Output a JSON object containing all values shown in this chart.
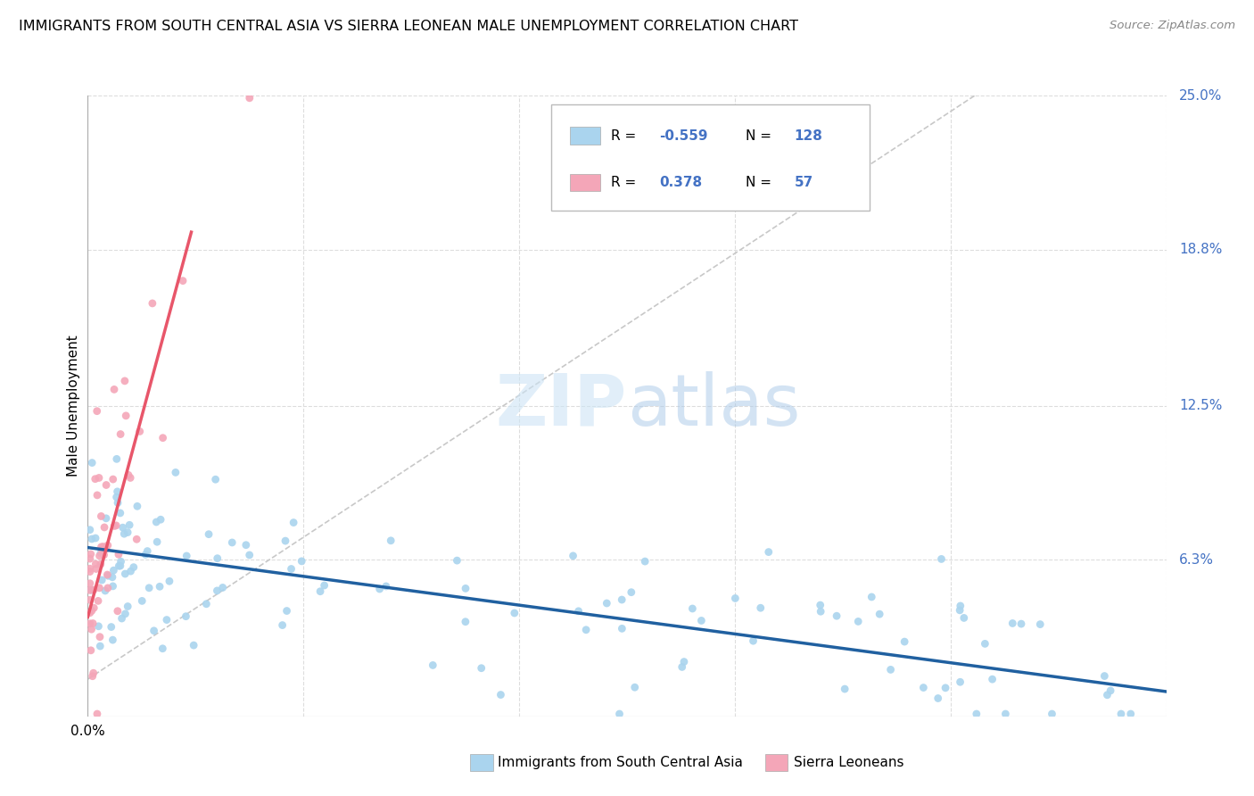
{
  "title": "IMMIGRANTS FROM SOUTH CENTRAL ASIA VS SIERRA LEONEAN MALE UNEMPLOYMENT CORRELATION CHART",
  "source": "Source: ZipAtlas.com",
  "ylabel": "Male Unemployment",
  "xlim": [
    0.0,
    0.5
  ],
  "ylim": [
    0.0,
    0.25
  ],
  "xticks": [
    0.0,
    0.1,
    0.2,
    0.3,
    0.4,
    0.5
  ],
  "ytick_labels_right": [
    "25.0%",
    "18.8%",
    "12.5%",
    "6.3%"
  ],
  "ytick_vals_right": [
    0.25,
    0.188,
    0.125,
    0.063
  ],
  "blue_R": -0.559,
  "blue_N": 128,
  "pink_R": 0.378,
  "pink_N": 57,
  "blue_color": "#aad4ee",
  "pink_color": "#f4a6b8",
  "blue_line_color": "#2060a0",
  "pink_line_color": "#e8566a",
  "dash_line_color": "#c8c8c8",
  "grid_color": "#dddddd",
  "legend_label_blue": "Immigrants from South Central Asia",
  "legend_label_pink": "Sierra Leoneans",
  "blue_line_x0": 0.0,
  "blue_line_y0": 0.068,
  "blue_line_x1": 0.5,
  "blue_line_y1": 0.01,
  "pink_line_x0": 0.0,
  "pink_line_y0": 0.04,
  "pink_line_x1": 0.048,
  "pink_line_y1": 0.195,
  "dash_line_x0": 0.0,
  "dash_line_y0": 0.015,
  "dash_line_x1": 0.42,
  "dash_line_y1": 0.255
}
